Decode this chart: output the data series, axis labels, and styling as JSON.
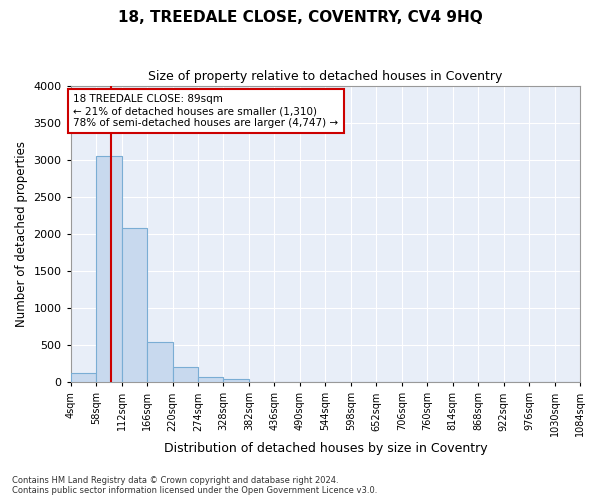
{
  "title": "18, TREEDALE CLOSE, COVENTRY, CV4 9HQ",
  "subtitle": "Size of property relative to detached houses in Coventry",
  "xlabel": "Distribution of detached houses by size in Coventry",
  "ylabel": "Number of detached properties",
  "bar_color": "#c8d9ee",
  "bar_edge_color": "#7aadd4",
  "background_color": "#e8eef8",
  "grid_color": "#ffffff",
  "bin_edges": [
    4,
    58,
    112,
    166,
    220,
    274,
    328,
    382,
    436,
    490,
    544,
    598,
    652,
    706,
    760,
    814,
    868,
    922,
    976,
    1030,
    1084
  ],
  "bin_labels": [
    "4sqm",
    "58sqm",
    "112sqm",
    "166sqm",
    "220sqm",
    "274sqm",
    "328sqm",
    "382sqm",
    "436sqm",
    "490sqm",
    "544sqm",
    "598sqm",
    "652sqm",
    "706sqm",
    "760sqm",
    "814sqm",
    "868sqm",
    "922sqm",
    "976sqm",
    "1030sqm",
    "1084sqm"
  ],
  "bar_heights": [
    130,
    3050,
    2080,
    540,
    210,
    70,
    40,
    0,
    0,
    0,
    0,
    0,
    0,
    0,
    0,
    0,
    0,
    0,
    0,
    0
  ],
  "property_size": 89,
  "red_line_color": "#cc0000",
  "annotation_line1": "18 TREEDALE CLOSE: 89sqm",
  "annotation_line2": "← 21% of detached houses are smaller (1,310)",
  "annotation_line3": "78% of semi-detached houses are larger (4,747) →",
  "annotation_box_color": "#ffffff",
  "annotation_box_edge": "#cc0000",
  "ylim": [
    0,
    4000
  ],
  "yticks": [
    0,
    500,
    1000,
    1500,
    2000,
    2500,
    3000,
    3500,
    4000
  ],
  "footer_line1": "Contains HM Land Registry data © Crown copyright and database right 2024.",
  "footer_line2": "Contains public sector information licensed under the Open Government Licence v3.0.",
  "fig_facecolor": "#ffffff"
}
